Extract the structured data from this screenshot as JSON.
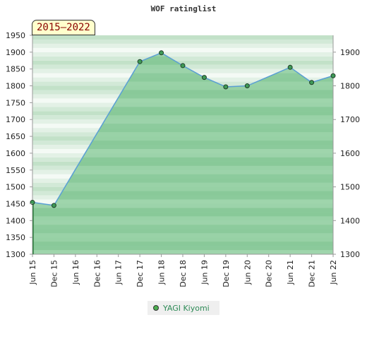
{
  "chart_data": {
    "type": "area",
    "title": "WOF ratinglist",
    "period_label": "2015–2022",
    "x": [
      "Jun 15",
      "Dec 15",
      "Jun 16",
      "Dec 16",
      "Jun 17",
      "Dec 17",
      "Jun 18",
      "Dec 18",
      "Jun 19",
      "Dec 19",
      "Jun 20",
      "Dec 20",
      "Jun 21",
      "Dec 21",
      "Jun 22"
    ],
    "series": [
      {
        "name": "YAGI Kiyomi",
        "values": [
          1454,
          1445,
          null,
          null,
          null,
          1872,
          1898,
          1860,
          1825,
          1797,
          1800,
          null,
          1855,
          1810,
          1830
        ],
        "color": "#4caf50"
      }
    ],
    "y_left_ticks": [
      1300,
      1350,
      1400,
      1450,
      1500,
      1550,
      1600,
      1650,
      1700,
      1750,
      1800,
      1850,
      1900,
      1950
    ],
    "y_right_ticks": [
      1300,
      1400,
      1500,
      1600,
      1700,
      1800,
      1900
    ],
    "ylim": [
      1300,
      1950
    ],
    "grid": true,
    "legend_position": "bottom-center"
  }
}
